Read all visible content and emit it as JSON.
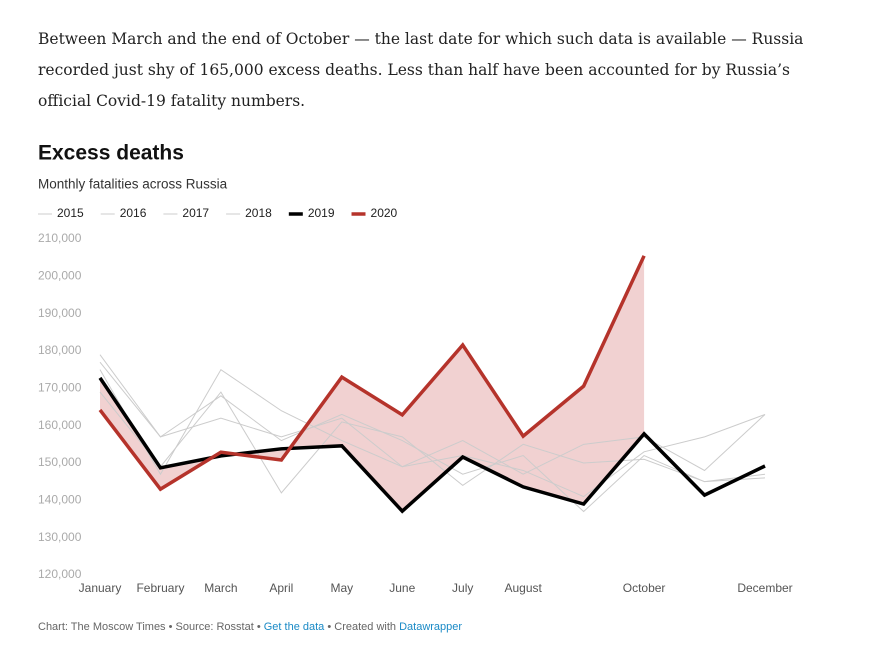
{
  "article": {
    "intro": "Between March and the end of October — the last date for which such data is available — Russia recorded just shy of 165,000 excess deaths. Less than half have been accounted for by Russia’s official Covid-19 fatality numbers."
  },
  "chart_data": {
    "type": "line",
    "title": "Excess deaths",
    "subtitle": "Monthly fatalities across Russia",
    "categories": [
      "January",
      "February",
      "March",
      "April",
      "May",
      "June",
      "July",
      "August",
      null,
      "October",
      null,
      "December"
    ],
    "series": [
      {
        "name": "2015",
        "color": "#cccccc",
        "values": [
          179000,
          157000,
          168000,
          156000,
          163000,
          156000,
          147000,
          152000,
          137000,
          152000,
          145000,
          146000
        ]
      },
      {
        "name": "2016",
        "color": "#cccccc",
        "values": [
          175000,
          147000,
          175000,
          164000,
          156000,
          149000,
          152000,
          148000,
          141000,
          153000,
          157000,
          163000
        ]
      },
      {
        "name": "2017",
        "color": "#cccccc",
        "values": [
          169000,
          149000,
          169000,
          142000,
          161000,
          157000,
          144000,
          155000,
          150000,
          151000,
          145000,
          147000
        ]
      },
      {
        "name": "2018",
        "color": "#cccccc",
        "values": [
          177000,
          157000,
          162000,
          157000,
          162000,
          149000,
          156000,
          147000,
          155000,
          157000,
          148000,
          163000
        ]
      },
      {
        "name": "2019",
        "color": "#000000",
        "values": [
          172800,
          148700,
          151900,
          153800,
          154600,
          137100,
          151600,
          143600,
          139000,
          157800,
          141400,
          149200
        ]
      },
      {
        "name": "2020",
        "color": "#b5332b",
        "values": [
          164200,
          143000,
          152900,
          150800,
          173000,
          162900,
          181600,
          157200,
          170600,
          205500,
          null,
          null
        ]
      }
    ],
    "fill_between": {
      "upper": "2020",
      "lower": "2019",
      "color": "#efc9c9"
    },
    "ylim": [
      120000,
      210000
    ],
    "yticks": [
      {
        "value": 120000,
        "label": "120,000"
      },
      {
        "value": 130000,
        "label": "130,000"
      },
      {
        "value": 140000,
        "label": "140,000"
      },
      {
        "value": 150000,
        "label": "150,000"
      },
      {
        "value": 160000,
        "label": "160,000"
      },
      {
        "value": 170000,
        "label": "170,000"
      },
      {
        "value": 180000,
        "label": "180,000"
      },
      {
        "value": 190000,
        "label": "190,000"
      },
      {
        "value": 200000,
        "label": "200,000"
      },
      {
        "value": 210000,
        "label": "210,000"
      }
    ],
    "grid": false,
    "legend": "top",
    "footer": {
      "credit": "Chart: The Moscow Times • Source: Rosstat •",
      "data_link": "Get the data",
      "created": "• Created with",
      "tool_link": "Datawrapper"
    }
  }
}
